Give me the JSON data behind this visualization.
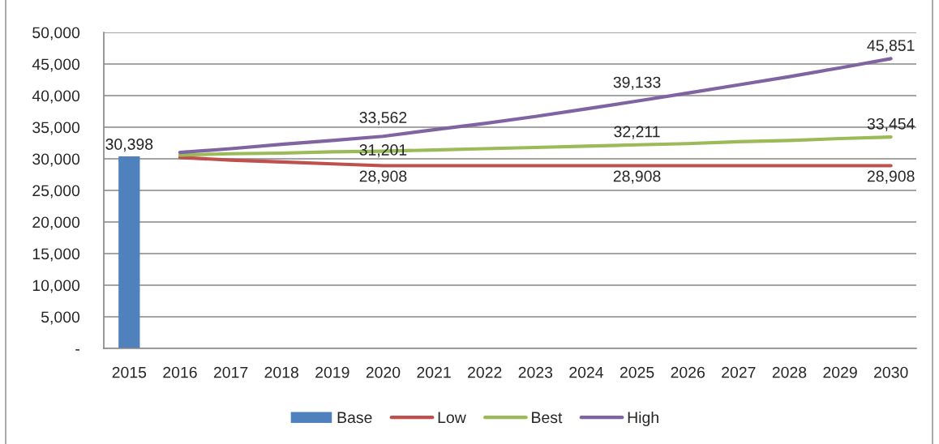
{
  "chart_data": {
    "type": "line",
    "categories": [
      "2015",
      "2016",
      "2017",
      "2018",
      "2019",
      "2020",
      "2021",
      "2022",
      "2023",
      "2024",
      "2025",
      "2026",
      "2027",
      "2028",
      "2029",
      "2030"
    ],
    "series": [
      {
        "name": "Base",
        "type": "bar",
        "color": "#4f81bd",
        "values": [
          30398,
          null,
          null,
          null,
          null,
          null,
          null,
          null,
          null,
          null,
          null,
          null,
          null,
          null,
          null,
          null
        ],
        "value_labels": [
          "30,398",
          null,
          null,
          null,
          null,
          null,
          null,
          null,
          null,
          null,
          null,
          null,
          null,
          null,
          null,
          null
        ]
      },
      {
        "name": "Low",
        "color": "#c0504d",
        "values": [
          null,
          30200,
          29800,
          29500,
          29200,
          28908,
          28908,
          28908,
          28908,
          28908,
          28908,
          28908,
          28908,
          28908,
          28908,
          28908
        ],
        "value_labels": [
          null,
          null,
          null,
          null,
          null,
          "28,908",
          null,
          null,
          null,
          null,
          "28,908",
          null,
          null,
          null,
          null,
          "28,908"
        ]
      },
      {
        "name": "Best",
        "color": "#9bbb59",
        "values": [
          null,
          30600,
          30800,
          30900,
          31100,
          31201,
          31400,
          31600,
          31800,
          32000,
          32211,
          32400,
          32700,
          32900,
          33200,
          33454
        ],
        "value_labels": [
          null,
          null,
          null,
          null,
          null,
          "31,201",
          null,
          null,
          null,
          null,
          "32,211",
          null,
          null,
          null,
          null,
          "33,454"
        ]
      },
      {
        "name": "High",
        "color": "#8064a2",
        "values": [
          null,
          31000,
          31600,
          32300,
          32900,
          33562,
          34600,
          35600,
          36700,
          37900,
          39133,
          40400,
          41700,
          43000,
          44400,
          45851
        ],
        "value_labels": [
          null,
          null,
          null,
          null,
          null,
          "33,562",
          null,
          null,
          null,
          null,
          "39,133",
          null,
          null,
          null,
          null,
          "45,851"
        ]
      }
    ],
    "ylim": [
      0,
      50000
    ],
    "yticks": [
      {
        "value": 0,
        "label": "-"
      },
      {
        "value": 5000,
        "label": "5,000"
      },
      {
        "value": 10000,
        "label": "10,000"
      },
      {
        "value": 15000,
        "label": "15,000"
      },
      {
        "value": 20000,
        "label": "20,000"
      },
      {
        "value": 25000,
        "label": "25,000"
      },
      {
        "value": 30000,
        "label": "30,000"
      },
      {
        "value": 35000,
        "label": "35,000"
      },
      {
        "value": 40000,
        "label": "40,000"
      },
      {
        "value": 45000,
        "label": "45,000"
      },
      {
        "value": 50000,
        "label": "50,000"
      }
    ],
    "grid": "y",
    "legend": "bottom"
  }
}
